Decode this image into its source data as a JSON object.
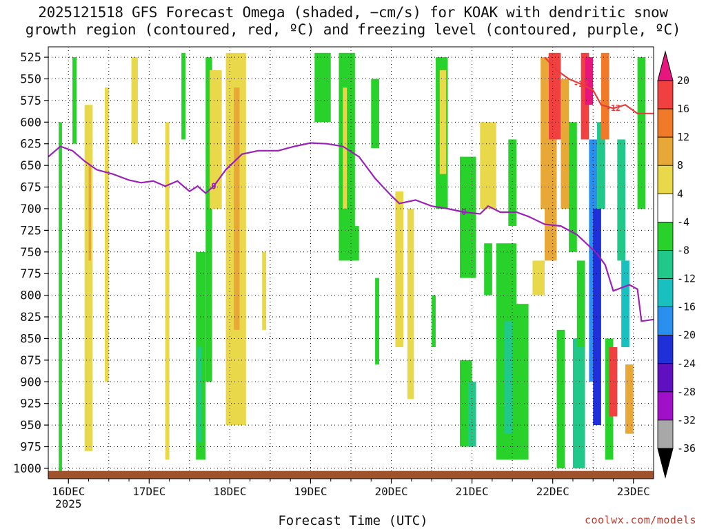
{
  "title_line1": "2025121518 GFS Forecast Omega (shaded, −cm/s) for KOAK with dendritic snow",
  "title_line2": "growth region (contoured, red, ºC) and freezing level (contoured, purple, ºC)",
  "credit": "coolwx.com/models",
  "chart_data": {
    "type": "heatmap",
    "title": "2025121518 GFS Forecast Omega (shaded, −cm/s) for KOAK with dendritic snow growth region (contoured, red, ºC) and freezing level (contoured, purple, ºC)",
    "xlabel": "Forecast Time (UTC)",
    "ylabel": "",
    "x_ticks": [
      "16DEC",
      "17DEC",
      "18DEC",
      "19DEC",
      "20DEC",
      "21DEC",
      "22DEC",
      "23DEC"
    ],
    "x_year_label": "2025",
    "x_range_days": [
      -0.25,
      7.25
    ],
    "y_ticks": [
      525,
      550,
      575,
      600,
      625,
      650,
      675,
      700,
      725,
      750,
      775,
      800,
      825,
      850,
      875,
      900,
      925,
      950,
      975,
      1000
    ],
    "y_range": [
      513,
      1012
    ],
    "grid": true,
    "colorbar": {
      "labels": [
        "20",
        "16",
        "12",
        "8",
        "4",
        "-4",
        "-8",
        "-12",
        "-16",
        "-20",
        "-24",
        "-28",
        "-32",
        "-36"
      ],
      "bands": [
        {
          "from": 20,
          "to": 24,
          "color": "#e8157f"
        },
        {
          "from": 16,
          "to": 20,
          "color": "#f04040"
        },
        {
          "from": 12,
          "to": 16,
          "color": "#f07a28"
        },
        {
          "from": 8,
          "to": 12,
          "color": "#e8a838"
        },
        {
          "from": 4,
          "to": 8,
          "color": "#e8d84a"
        },
        {
          "from": -4,
          "to": 4,
          "color": "#ffffff"
        },
        {
          "from": -8,
          "to": -4,
          "color": "#28d22a"
        },
        {
          "from": -12,
          "to": -8,
          "color": "#20c88a"
        },
        {
          "from": -16,
          "to": -12,
          "color": "#18c0c0"
        },
        {
          "from": -20,
          "to": -16,
          "color": "#2a90f0"
        },
        {
          "from": -24,
          "to": -20,
          "color": "#2030d8"
        },
        {
          "from": -28,
          "to": -24,
          "color": "#6010c0"
        },
        {
          "from": -32,
          "to": -28,
          "color": "#a010c8"
        },
        {
          "from": -36,
          "to": -32,
          "color": "#a8a8a8"
        }
      ],
      "top_arrow_color": "#e8157f",
      "bottom_arrow_color": "#000000"
    },
    "series": [
      {
        "name": "freezing level",
        "label": "0",
        "color": "#9a20b8",
        "points": [
          [
            -0.25,
            640
          ],
          [
            -0.1,
            628
          ],
          [
            0.05,
            633
          ],
          [
            0.2,
            645
          ],
          [
            0.35,
            655
          ],
          [
            0.55,
            660
          ],
          [
            0.75,
            667
          ],
          [
            0.9,
            670
          ],
          [
            1.05,
            668
          ],
          [
            1.2,
            674
          ],
          [
            1.35,
            668
          ],
          [
            1.5,
            680
          ],
          [
            1.6,
            674
          ],
          [
            1.7,
            682
          ],
          [
            1.8,
            674
          ],
          [
            1.95,
            655
          ],
          [
            2.15,
            637
          ],
          [
            2.35,
            633
          ],
          [
            2.6,
            633
          ],
          [
            2.8,
            628
          ],
          [
            3.0,
            624
          ],
          [
            3.2,
            625
          ],
          [
            3.4,
            628
          ],
          [
            3.6,
            640
          ],
          [
            3.8,
            665
          ],
          [
            4.0,
            685
          ],
          [
            4.1,
            694
          ],
          [
            4.3,
            690
          ],
          [
            4.5,
            697
          ],
          [
            4.7,
            700
          ],
          [
            4.9,
            704
          ],
          [
            5.1,
            706
          ],
          [
            5.2,
            697
          ],
          [
            5.35,
            704
          ],
          [
            5.55,
            704
          ],
          [
            5.7,
            709
          ],
          [
            5.9,
            718
          ],
          [
            6.1,
            720
          ],
          [
            6.3,
            730
          ],
          [
            6.45,
            743
          ],
          [
            6.55,
            752
          ],
          [
            6.65,
            765
          ],
          [
            6.75,
            795
          ],
          [
            6.95,
            788
          ],
          [
            7.05,
            793
          ],
          [
            7.1,
            830
          ],
          [
            7.25,
            828
          ]
        ]
      },
      {
        "name": "dendritic snow growth region",
        "label": "-12",
        "color": "#e83c3c",
        "points": [
          [
            5.9,
            525
          ],
          [
            6.05,
            540
          ],
          [
            6.2,
            550
          ],
          [
            6.35,
            556
          ],
          [
            6.5,
            563
          ],
          [
            6.6,
            580
          ],
          [
            6.75,
            584
          ],
          [
            6.9,
            580
          ],
          [
            7.05,
            590
          ],
          [
            7.25,
            590
          ]
        ]
      }
    ],
    "cells_note": "Shaded columns read from color key; value = representative omega (-cm/s).",
    "cells": [
      {
        "x": [
          0.05,
          0.1
        ],
        "y": [
          525,
          625
        ],
        "value": -6
      },
      {
        "x": [
          -0.12,
          -0.08
        ],
        "y": [
          600,
          1012
        ],
        "value": -6
      },
      {
        "x": [
          0.2,
          0.3
        ],
        "y": [
          580,
          980
        ],
        "value": 6
      },
      {
        "x": [
          0.25,
          0.28
        ],
        "y": [
          650,
          760
        ],
        "value": 10
      },
      {
        "x": [
          0.45,
          0.5
        ],
        "y": [
          560,
          900
        ],
        "value": 6
      },
      {
        "x": [
          0.78,
          0.86
        ],
        "y": [
          525,
          625
        ],
        "value": 6
      },
      {
        "x": [
          1.2,
          1.25
        ],
        "y": [
          600,
          990
        ],
        "value": 6
      },
      {
        "x": [
          1.4,
          1.45
        ],
        "y": [
          520,
          620
        ],
        "value": -6
      },
      {
        "x": [
          1.58,
          1.7
        ],
        "y": [
          750,
          990
        ],
        "value": -6
      },
      {
        "x": [
          1.6,
          1.65
        ],
        "y": [
          860,
          970
        ],
        "value": -10
      },
      {
        "x": [
          1.7,
          1.78
        ],
        "y": [
          525,
          900
        ],
        "value": -6
      },
      {
        "x": [
          1.75,
          1.9
        ],
        "y": [
          540,
          700
        ],
        "value": 6
      },
      {
        "x": [
          1.95,
          2.2
        ],
        "y": [
          520,
          950
        ],
        "value": 6
      },
      {
        "x": [
          2.05,
          2.12
        ],
        "y": [
          560,
          840
        ],
        "value": 10
      },
      {
        "x": [
          2.4,
          2.45
        ],
        "y": [
          750,
          840
        ],
        "value": 6
      },
      {
        "x": [
          3.05,
          3.25
        ],
        "y": [
          520,
          600
        ],
        "value": -6
      },
      {
        "x": [
          3.35,
          3.55
        ],
        "y": [
          520,
          760
        ],
        "value": -6
      },
      {
        "x": [
          3.4,
          3.45
        ],
        "y": [
          560,
          700
        ],
        "value": 6
      },
      {
        "x": [
          3.5,
          3.6
        ],
        "y": [
          720,
          760
        ],
        "value": -6
      },
      {
        "x": [
          3.75,
          3.85
        ],
        "y": [
          550,
          630
        ],
        "value": -6
      },
      {
        "x": [
          3.8,
          3.85
        ],
        "y": [
          780,
          880
        ],
        "value": -6
      },
      {
        "x": [
          4.05,
          4.15
        ],
        "y": [
          680,
          860
        ],
        "value": 6
      },
      {
        "x": [
          4.2,
          4.28
        ],
        "y": [
          700,
          920
        ],
        "value": 6
      },
      {
        "x": [
          4.5,
          4.55
        ],
        "y": [
          800,
          860
        ],
        "value": -6
      },
      {
        "x": [
          4.55,
          4.7
        ],
        "y": [
          525,
          700
        ],
        "value": -6
      },
      {
        "x": [
          4.6,
          4.68
        ],
        "y": [
          540,
          660
        ],
        "value": 6
      },
      {
        "x": [
          4.85,
          5.05
        ],
        "y": [
          640,
          780
        ],
        "value": -6
      },
      {
        "x": [
          4.85,
          5.0
        ],
        "y": [
          875,
          975
        ],
        "value": -6
      },
      {
        "x": [
          4.95,
          5.05
        ],
        "y": [
          900,
          975
        ],
        "value": -10
      },
      {
        "x": [
          5.1,
          5.3
        ],
        "y": [
          600,
          700
        ],
        "value": 6
      },
      {
        "x": [
          5.15,
          5.25
        ],
        "y": [
          740,
          800
        ],
        "value": -6
      },
      {
        "x": [
          5.3,
          5.55
        ],
        "y": [
          740,
          990
        ],
        "value": -6
      },
      {
        "x": [
          5.4,
          5.5
        ],
        "y": [
          830,
          960
        ],
        "value": -10
      },
      {
        "x": [
          5.45,
          5.55
        ],
        "y": [
          620,
          720
        ],
        "value": -6
      },
      {
        "x": [
          5.55,
          5.7
        ],
        "y": [
          810,
          990
        ],
        "value": -6
      },
      {
        "x": [
          5.75,
          5.9
        ],
        "y": [
          760,
          800
        ],
        "value": 6
      },
      {
        "x": [
          5.85,
          5.95
        ],
        "y": [
          525,
          700
        ],
        "value": 10
      },
      {
        "x": [
          5.9,
          6.05
        ],
        "y": [
          620,
          760
        ],
        "value": 10
      },
      {
        "x": [
          5.95,
          6.1
        ],
        "y": [
          520,
          620
        ],
        "value": 16
      },
      {
        "x": [
          6.05,
          6.15
        ],
        "y": [
          840,
          1000
        ],
        "value": -6
      },
      {
        "x": [
          6.1,
          6.2
        ],
        "y": [
          550,
          700
        ],
        "value": 8
      },
      {
        "x": [
          6.2,
          6.3
        ],
        "y": [
          600,
          750
        ],
        "value": -6
      },
      {
        "x": [
          6.25,
          6.4
        ],
        "y": [
          850,
          1000
        ],
        "value": -10
      },
      {
        "x": [
          6.3,
          6.4
        ],
        "y": [
          760,
          860
        ],
        "value": -6
      },
      {
        "x": [
          6.35,
          6.45
        ],
        "y": [
          520,
          620
        ],
        "value": 16
      },
      {
        "x": [
          6.4,
          6.5
        ],
        "y": [
          525,
          580
        ],
        "value": 22
      },
      {
        "x": [
          6.45,
          6.55
        ],
        "y": [
          620,
          900
        ],
        "value": -18
      },
      {
        "x": [
          6.5,
          6.6
        ],
        "y": [
          700,
          950
        ],
        "value": -22
      },
      {
        "x": [
          6.55,
          6.65
        ],
        "y": [
          600,
          700
        ],
        "value": -10
      },
      {
        "x": [
          6.6,
          6.7
        ],
        "y": [
          520,
          620
        ],
        "value": 12
      },
      {
        "x": [
          6.65,
          6.75
        ],
        "y": [
          850,
          990
        ],
        "value": -6
      },
      {
        "x": [
          6.7,
          6.8
        ],
        "y": [
          860,
          940
        ],
        "value": 18
      },
      {
        "x": [
          6.8,
          6.9
        ],
        "y": [
          620,
          760
        ],
        "value": -10
      },
      {
        "x": [
          6.85,
          6.95
        ],
        "y": [
          760,
          860
        ],
        "value": -14
      },
      {
        "x": [
          6.9,
          7.0
        ],
        "y": [
          880,
          960
        ],
        "value": 10
      },
      {
        "x": [
          7.05,
          7.15
        ],
        "y": [
          525,
          700
        ],
        "value": -6
      }
    ]
  }
}
